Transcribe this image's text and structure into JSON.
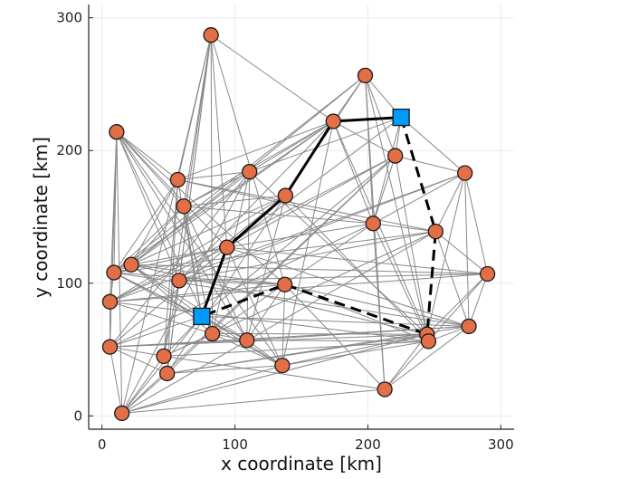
{
  "chart_data": {
    "type": "scatter",
    "xlabel": "x coordinate [km]",
    "ylabel": "y coordinate [km]",
    "xlim": [
      -10,
      310
    ],
    "ylim": [
      -10,
      310
    ],
    "xticks": [
      0,
      100,
      200,
      300
    ],
    "yticks": [
      0,
      100,
      200,
      300
    ],
    "grid": true,
    "colors": {
      "customer": "#E26F46",
      "depot": "#009AFA",
      "edge": "#888888",
      "route": "#000000",
      "grid": "#EBEBEB"
    },
    "customers": [
      [
        82,
        287
      ],
      [
        11,
        214
      ],
      [
        174,
        222
      ],
      [
        57,
        178
      ],
      [
        111,
        184
      ],
      [
        61.5,
        158
      ],
      [
        138,
        166
      ],
      [
        198,
        256.5
      ],
      [
        220.6,
        196
      ],
      [
        273,
        183
      ],
      [
        204,
        145
      ],
      [
        251,
        139
      ],
      [
        94,
        127
      ],
      [
        22,
        114
      ],
      [
        9,
        108
      ],
      [
        58,
        102
      ],
      [
        137.5,
        99
      ],
      [
        6,
        86
      ],
      [
        83,
        62
      ],
      [
        109,
        57
      ],
      [
        6,
        52
      ],
      [
        46.5,
        45
      ],
      [
        49,
        32
      ],
      [
        135.6,
        38
      ],
      [
        15,
        2
      ],
      [
        290,
        107
      ],
      [
        276,
        67.5
      ],
      [
        244.5,
        61.5
      ],
      [
        245.6,
        56.3
      ],
      [
        212.7,
        20
      ]
    ],
    "depots": [
      [
        225,
        225
      ],
      [
        75,
        75
      ]
    ],
    "edges": [
      [
        0,
        2
      ],
      [
        0,
        3
      ],
      [
        0,
        5
      ],
      [
        0,
        12
      ],
      [
        0,
        15
      ],
      [
        0,
        18
      ],
      [
        0,
        21
      ],
      [
        0,
        22
      ],
      [
        0,
        24
      ],
      [
        0,
        16
      ],
      [
        1,
        3
      ],
      [
        1,
        5
      ],
      [
        1,
        12
      ],
      [
        1,
        15
      ],
      [
        1,
        16
      ],
      [
        1,
        18
      ],
      [
        1,
        19
      ],
      [
        1,
        14
      ],
      [
        1,
        17
      ],
      [
        1,
        20
      ],
      [
        1,
        24
      ],
      [
        1,
        23
      ],
      [
        2,
        3
      ],
      [
        2,
        4
      ],
      [
        2,
        5
      ],
      [
        2,
        7
      ],
      [
        2,
        8
      ],
      [
        2,
        10
      ],
      [
        2,
        13
      ],
      [
        2,
        14
      ],
      [
        2,
        15
      ],
      [
        2,
        27
      ],
      [
        2,
        23
      ],
      [
        3,
        4
      ],
      [
        3,
        13
      ],
      [
        3,
        14
      ],
      [
        3,
        21
      ],
      [
        3,
        22
      ],
      [
        3,
        10
      ],
      [
        3,
        11
      ],
      [
        4,
        5
      ],
      [
        4,
        13
      ],
      [
        4,
        18
      ],
      [
        4,
        19
      ],
      [
        4,
        24
      ],
      [
        4,
        20
      ],
      [
        4,
        27
      ],
      [
        5,
        6
      ],
      [
        5,
        13
      ],
      [
        5,
        14
      ],
      [
        5,
        18
      ],
      [
        5,
        19
      ],
      [
        5,
        10
      ],
      [
        6,
        7
      ],
      [
        6,
        13
      ],
      [
        6,
        15
      ],
      [
        6,
        17
      ],
      [
        6,
        19
      ],
      [
        6,
        28
      ],
      [
        6,
        22
      ],
      [
        7,
        8
      ],
      [
        7,
        10
      ],
      [
        7,
        13
      ],
      [
        7,
        14
      ],
      [
        7,
        28
      ],
      [
        7,
        29
      ],
      [
        8,
        9
      ],
      [
        8,
        10
      ],
      [
        8,
        12
      ],
      [
        8,
        17
      ],
      [
        8,
        22
      ],
      [
        8,
        28
      ],
      [
        8,
        24
      ],
      [
        9,
        10
      ],
      [
        9,
        11
      ],
      [
        9,
        26
      ],
      [
        9,
        27
      ],
      [
        9,
        17
      ],
      [
        9,
        15
      ],
      [
        10,
        11
      ],
      [
        10,
        12
      ],
      [
        10,
        29
      ],
      [
        10,
        18
      ],
      [
        10,
        20
      ],
      [
        10,
        28
      ],
      [
        11,
        25
      ],
      [
        11,
        26
      ],
      [
        11,
        15
      ],
      [
        11,
        14
      ],
      [
        11,
        24
      ],
      [
        12,
        13
      ],
      [
        12,
        14
      ],
      [
        12,
        17
      ],
      [
        12,
        20
      ],
      [
        12,
        23
      ],
      [
        12,
        26
      ],
      [
        13,
        14
      ],
      [
        13,
        16
      ],
      [
        13,
        18
      ],
      [
        13,
        19
      ],
      [
        13,
        27
      ],
      [
        13,
        25
      ],
      [
        14,
        16
      ],
      [
        14,
        17
      ],
      [
        14,
        19
      ],
      [
        14,
        23
      ],
      [
        14,
        26
      ],
      [
        15,
        16
      ],
      [
        15,
        21
      ],
      [
        15,
        22
      ],
      [
        15,
        25
      ],
      [
        16,
        17
      ],
      [
        16,
        19
      ],
      [
        16,
        23
      ],
      [
        16,
        26
      ],
      [
        16,
        28
      ],
      [
        16,
        29
      ],
      [
        17,
        20
      ],
      [
        17,
        18
      ],
      [
        17,
        28
      ],
      [
        17,
        25
      ],
      [
        18,
        19
      ],
      [
        18,
        23
      ],
      [
        18,
        27
      ],
      [
        18,
        21
      ],
      [
        19,
        20
      ],
      [
        19,
        23
      ],
      [
        19,
        28
      ],
      [
        20,
        21
      ],
      [
        20,
        24
      ],
      [
        20,
        26
      ],
      [
        20,
        27
      ],
      [
        20,
        22
      ],
      [
        21,
        24
      ],
      [
        21,
        28
      ],
      [
        21,
        11
      ],
      [
        22,
        24
      ],
      [
        22,
        23
      ],
      [
        22,
        27
      ],
      [
        22,
        26
      ],
      [
        23,
        27
      ],
      [
        23,
        28
      ],
      [
        23,
        24
      ],
      [
        24,
        29
      ],
      [
        24,
        27
      ],
      [
        25,
        26
      ],
      [
        25,
        27
      ],
      [
        25,
        28
      ],
      [
        25,
        9
      ],
      [
        25,
        12
      ],
      [
        26,
        28
      ],
      [
        26,
        29
      ],
      [
        26,
        19
      ],
      [
        27,
        29
      ],
      [
        28,
        29
      ],
      [
        29,
        21
      ],
      [
        30,
        7
      ],
      [
        30,
        8
      ],
      [
        30,
        10
      ],
      [
        30,
        12
      ],
      [
        30,
        9
      ],
      [
        30,
        4
      ],
      [
        31,
        3
      ],
      [
        31,
        13
      ],
      [
        31,
        14
      ],
      [
        31,
        20
      ],
      [
        31,
        21
      ],
      [
        31,
        24
      ],
      [
        31,
        19
      ],
      [
        31,
        23
      ],
      [
        31,
        26
      ],
      [
        31,
        5
      ],
      [
        31,
        8
      ]
    ],
    "routes": [
      {
        "style": "solid",
        "path": [
          31,
          12,
          6,
          2,
          30
        ]
      },
      {
        "style": "dashed",
        "path": [
          30,
          11,
          27,
          16,
          31
        ]
      }
    ]
  }
}
